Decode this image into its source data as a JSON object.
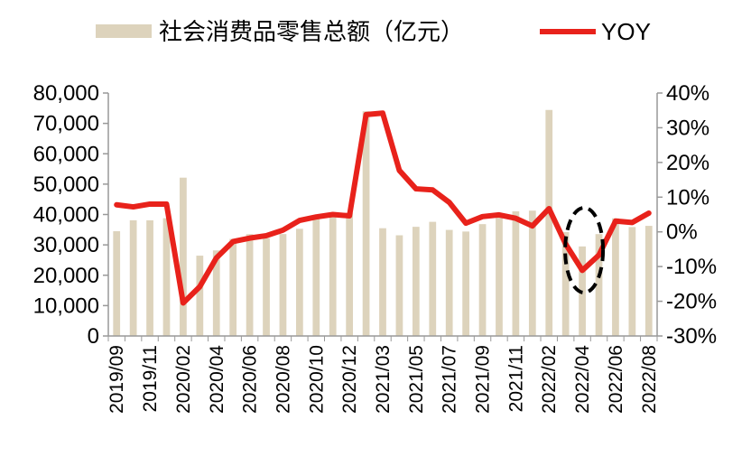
{
  "chart_data": {
    "type": "bar",
    "legend": {
      "placement": "top",
      "bar_label": "社会消费品零售总额（亿元）",
      "line_label": "YOY"
    },
    "series": [
      {
        "name": "社会消费品零售总额（亿元）",
        "type": "bar",
        "axis": "left",
        "color": "#ddd3bc",
        "values": [
          34495,
          38104,
          38094,
          38777,
          52130,
          26450,
          28178,
          31973,
          33526,
          32203,
          33571,
          35295,
          38576,
          39514,
          40566,
          74000,
          35484,
          33153,
          35945,
          37586,
          34925,
          34395,
          36833,
          40454,
          41043,
          41269,
          74426,
          34233,
          29483,
          33547,
          38742,
          35870,
          36258
        ]
      },
      {
        "name": "YOY",
        "type": "line",
        "axis": "right",
        "color": "#e8221b",
        "values": [
          7.8,
          7.2,
          8.0,
          8.0,
          -20.5,
          -15.8,
          -7.5,
          -2.8,
          -1.8,
          -1.1,
          0.5,
          3.3,
          4.3,
          5.0,
          4.6,
          33.8,
          34.2,
          17.7,
          12.4,
          12.1,
          8.5,
          2.5,
          4.4,
          4.9,
          3.9,
          1.7,
          6.7,
          -3.5,
          -11.1,
          -6.7,
          3.1,
          2.7,
          5.4
        ]
      }
    ],
    "categories": [
      "2019/09",
      "2019/10",
      "2019/11",
      "2019/12",
      "2020/02",
      "2020/03",
      "2020/04",
      "2020/05",
      "2020/06",
      "2020/07",
      "2020/08",
      "2020/09",
      "2020/10",
      "2020/11",
      "2020/12",
      "2021/02",
      "2021/03",
      "2021/04",
      "2021/05",
      "2021/06",
      "2021/07",
      "2021/08",
      "2021/09",
      "2021/10",
      "2021/11",
      "2021/12",
      "2022/02",
      "2022/03",
      "2022/04",
      "2022/05",
      "2022/06",
      "2022/07",
      "2022/08"
    ],
    "x_tick_labels": [
      "2019/09",
      "2019/11",
      "2020/02",
      "2020/04",
      "2020/06",
      "2020/08",
      "2020/10",
      "2020/12",
      "2021/03",
      "2021/05",
      "2021/07",
      "2021/09",
      "2021/11",
      "2022/02",
      "2022/04",
      "2022/06",
      "2022/08"
    ],
    "y_left": {
      "min": 0,
      "max": 80000,
      "ticks": [
        "0",
        "10,000",
        "20,000",
        "30,000",
        "40,000",
        "50,000",
        "60,000",
        "70,000",
        "80,000"
      ]
    },
    "y_right": {
      "min": -30,
      "max": 40,
      "ticks": [
        "-30%",
        "-20%",
        "-10%",
        "0%",
        "10%",
        "20%",
        "30%",
        "40%"
      ]
    },
    "grid": false,
    "annotation": {
      "shape": "dashed-ellipse",
      "around_category": "2022/04"
    }
  }
}
